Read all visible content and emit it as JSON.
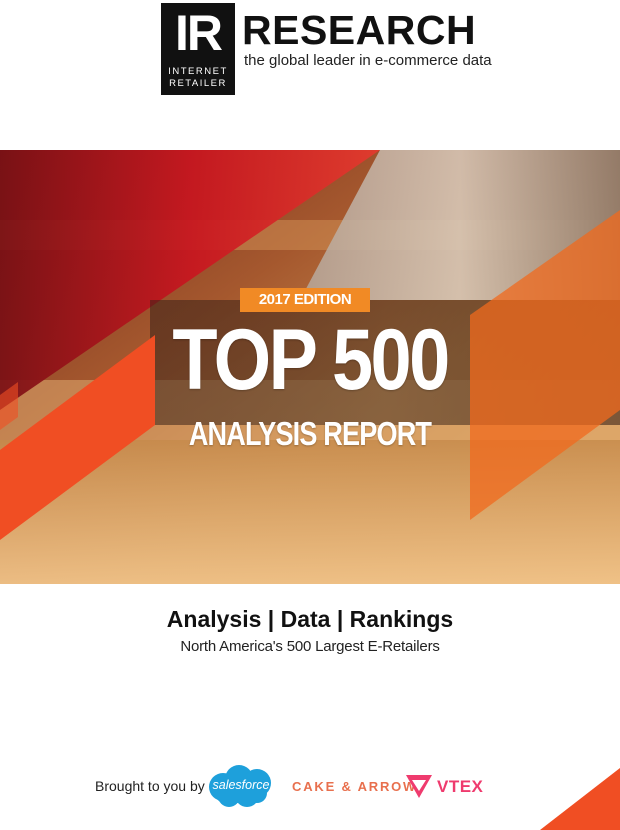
{
  "header": {
    "logo_initials": "IR",
    "logo_line1": "INTERNET",
    "logo_line2": "RETAILER",
    "title": "RESEARCH",
    "tagline": "the global leader in e-commerce data"
  },
  "cover": {
    "edition": "2017 EDITION",
    "title": "TOP 500",
    "subtitle": "ANALYSIS REPORT"
  },
  "main": {
    "subhead": "Analysis | Data | Rankings",
    "description": "North America's 500 Largest E-Retailers"
  },
  "sponsors": {
    "intro": "Brought to you by",
    "salesforce": "salesforce",
    "cake_arrow": "CAKE & ARROW",
    "vtex": "VTEX"
  },
  "colors": {
    "orange": "#f18a25",
    "deep_orange": "#f04e23",
    "logo_black": "#111111",
    "salesforce_blue": "#1ea0db",
    "vtex_pink": "#ef3b6e"
  }
}
